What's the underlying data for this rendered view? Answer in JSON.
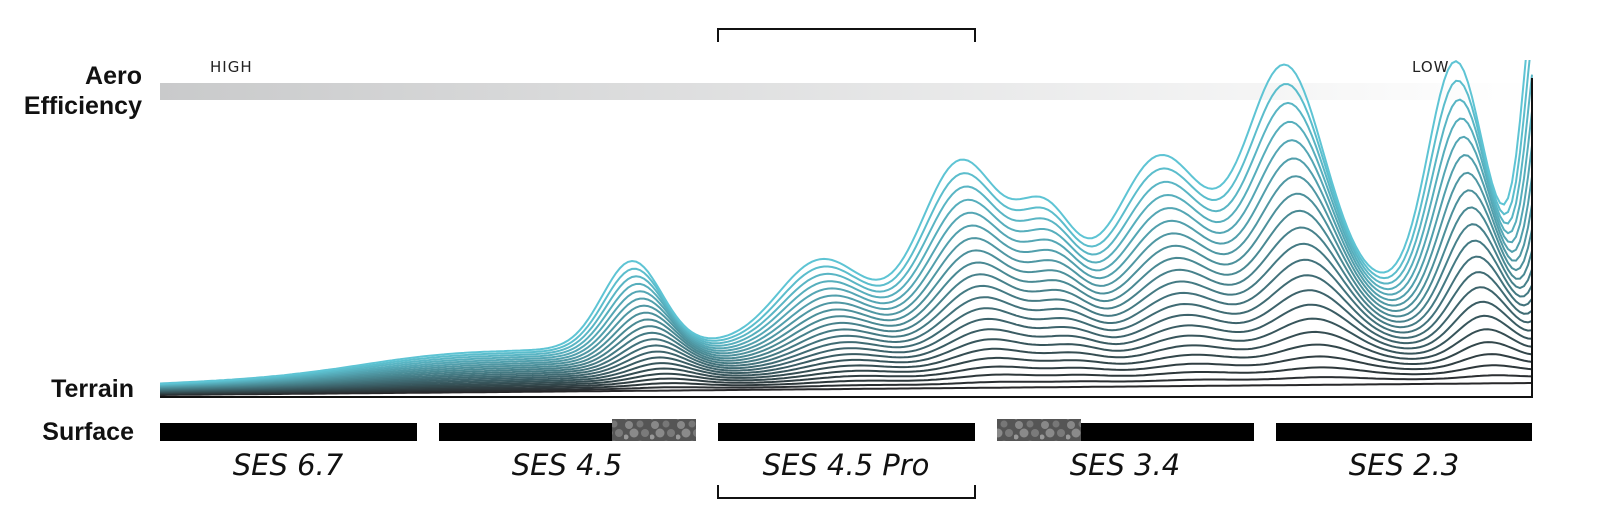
{
  "labels": {
    "aero_efficiency": [
      "Aero",
      "Efficiency"
    ],
    "high": "HIGH",
    "low": "LOW",
    "terrain": "Terrain",
    "surface": "Surface"
  },
  "products": [
    "SES 6.7",
    "SES 4.5",
    "SES 4.5 Pro",
    "SES 3.4",
    "SES 2.3"
  ]
}
